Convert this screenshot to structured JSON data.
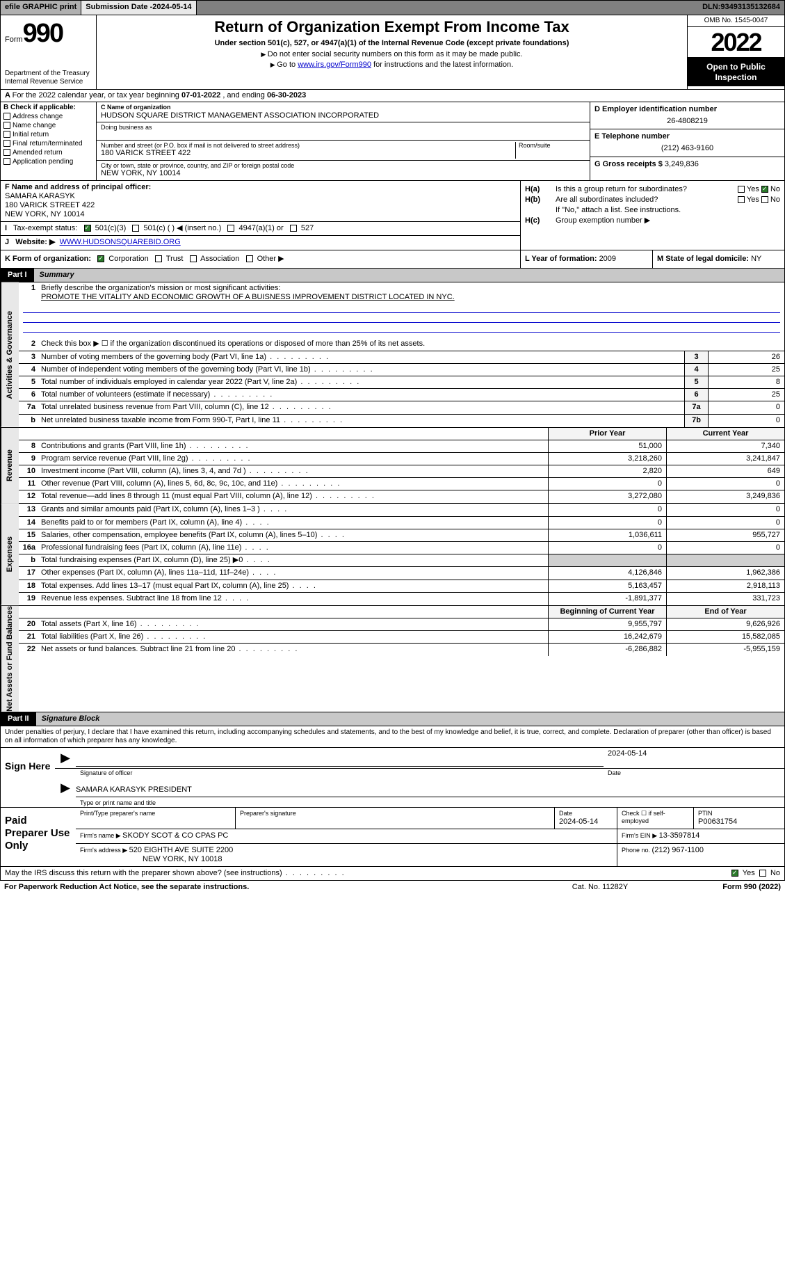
{
  "topbar": {
    "efile": "efile GRAPHIC print",
    "subdate_label": "Submission Date - ",
    "subdate": "2024-05-14",
    "dln_label": "DLN: ",
    "dln": "93493135132684"
  },
  "header": {
    "form_label": "Form",
    "form_num": "990",
    "dept": "Department of the Treasury\nInternal Revenue Service",
    "title": "Return of Organization Exempt From Income Tax",
    "sub1": "Under section 501(c), 527, or 4947(a)(1) of the Internal Revenue Code (except private foundations)",
    "sub2": "Do not enter social security numbers on this form as it may be made public.",
    "sub3_pre": "Go to ",
    "sub3_link": "www.irs.gov/Form990",
    "sub3_post": " for instructions and the latest information.",
    "omb": "OMB No. 1545-0047",
    "year": "2022",
    "inspect": "Open to Public Inspection"
  },
  "row_a": {
    "text_pre": "For the 2022 calendar year, or tax year beginning ",
    "begin": "07-01-2022",
    "text_mid": " , and ending ",
    "end": "06-30-2023"
  },
  "col_b": {
    "label": "B Check if applicable:",
    "items": [
      "Address change",
      "Name change",
      "Initial return",
      "Final return/terminated",
      "Amended return",
      "Application pending"
    ]
  },
  "col_c": {
    "c_label": "C Name of organization",
    "name": "HUDSON SQUARE DISTRICT MANAGEMENT ASSOCIATION INCORPORATED",
    "dba_label": "Doing business as",
    "addr_label": "Number and street (or P.O. box if mail is not delivered to street address)",
    "room_label": "Room/suite",
    "addr": "180 VARICK STREET 422",
    "city_label": "City or town, state or province, country, and ZIP or foreign postal code",
    "city": "NEW YORK, NY  10014"
  },
  "col_d": {
    "d_label": "D Employer identification number",
    "ein": "26-4808219",
    "e_label": "E Telephone number",
    "phone": "(212) 463-9160",
    "g_label": "G Gross receipts $ ",
    "gross": "3,249,836"
  },
  "row_f": {
    "label": "F Name and address of principal officer:",
    "name": "SAMARA KARASYK",
    "addr1": "180 VARICK STREET 422",
    "addr2": "NEW YORK, NY  10014"
  },
  "row_h": {
    "ha_label": "H(a)",
    "ha_text": "Is this a group return for subordinates?",
    "hb_label": "H(b)",
    "hb_text": "Are all subordinates included?",
    "hb_note": "If \"No,\" attach a list. See instructions.",
    "hc_label": "H(c)",
    "hc_text": "Group exemption number ▶",
    "yes": "Yes",
    "no": "No"
  },
  "row_i": {
    "label": "I",
    "text": "Tax-exempt status:",
    "opts": [
      "501(c)(3)",
      "501(c) (  ) ◀ (insert no.)",
      "4947(a)(1) or",
      "527"
    ]
  },
  "row_j": {
    "label": "J",
    "text": "Website: ▶",
    "url": "WWW.HUDSONSQUAREBID.ORG"
  },
  "row_k": {
    "label": "K Form of organization:",
    "opts": [
      "Corporation",
      "Trust",
      "Association",
      "Other ▶"
    ],
    "l_label": "L Year of formation: ",
    "l_val": "2009",
    "m_label": "M State of legal domicile: ",
    "m_val": "NY"
  },
  "part1": {
    "num": "Part I",
    "title": "Summary"
  },
  "summary": {
    "q1_label": "1",
    "q1": "Briefly describe the organization's mission or most significant activities:",
    "q1_ans": "PROMOTE THE VITALITY AND ECONOMIC GROWTH OF A BUISNESS IMPROVEMENT DISTRICT LOCATED IN NYC.",
    "q2_label": "2",
    "q2": "Check this box ▶ ☐  if the organization discontinued its operations or disposed of more than 25% of its net assets.",
    "rows_gov": [
      {
        "n": "3",
        "t": "Number of voting members of the governing body (Part VI, line 1a)",
        "box": "3",
        "v": "26"
      },
      {
        "n": "4",
        "t": "Number of independent voting members of the governing body (Part VI, line 1b)",
        "box": "4",
        "v": "25"
      },
      {
        "n": "5",
        "t": "Total number of individuals employed in calendar year 2022 (Part V, line 2a)",
        "box": "5",
        "v": "8"
      },
      {
        "n": "6",
        "t": "Total number of volunteers (estimate if necessary)",
        "box": "6",
        "v": "25"
      },
      {
        "n": "7a",
        "t": "Total unrelated business revenue from Part VIII, column (C), line 12",
        "box": "7a",
        "v": "0"
      },
      {
        "n": "b",
        "t": "Net unrelated business taxable income from Form 990-T, Part I, line 11",
        "box": "7b",
        "v": "0"
      }
    ],
    "prior_year": "Prior Year",
    "current_year": "Current Year",
    "rows_rev": [
      {
        "n": "8",
        "t": "Contributions and grants (Part VIII, line 1h)",
        "py": "51,000",
        "cy": "7,340"
      },
      {
        "n": "9",
        "t": "Program service revenue (Part VIII, line 2g)",
        "py": "3,218,260",
        "cy": "3,241,847"
      },
      {
        "n": "10",
        "t": "Investment income (Part VIII, column (A), lines 3, 4, and 7d )",
        "py": "2,820",
        "cy": "649"
      },
      {
        "n": "11",
        "t": "Other revenue (Part VIII, column (A), lines 5, 6d, 8c, 9c, 10c, and 11e)",
        "py": "0",
        "cy": "0"
      },
      {
        "n": "12",
        "t": "Total revenue—add lines 8 through 11 (must equal Part VIII, column (A), line 12)",
        "py": "3,272,080",
        "cy": "3,249,836"
      }
    ],
    "rows_exp": [
      {
        "n": "13",
        "t": "Grants and similar amounts paid (Part IX, column (A), lines 1–3 )",
        "py": "0",
        "cy": "0"
      },
      {
        "n": "14",
        "t": "Benefits paid to or for members (Part IX, column (A), line 4)",
        "py": "0",
        "cy": "0"
      },
      {
        "n": "15",
        "t": "Salaries, other compensation, employee benefits (Part IX, column (A), lines 5–10)",
        "py": "1,036,611",
        "cy": "955,727"
      },
      {
        "n": "16a",
        "t": "Professional fundraising fees (Part IX, column (A), line 11e)",
        "py": "0",
        "cy": "0"
      },
      {
        "n": "b",
        "t": "Total fundraising expenses (Part IX, column (D), line 25) ▶0",
        "py": "",
        "cy": ""
      },
      {
        "n": "17",
        "t": "Other expenses (Part IX, column (A), lines 11a–11d, 11f–24e)",
        "py": "4,126,846",
        "cy": "1,962,386"
      },
      {
        "n": "18",
        "t": "Total expenses. Add lines 13–17 (must equal Part IX, column (A), line 25)",
        "py": "5,163,457",
        "cy": "2,918,113"
      },
      {
        "n": "19",
        "t": "Revenue less expenses. Subtract line 18 from line 12",
        "py": "-1,891,377",
        "cy": "331,723"
      }
    ],
    "boy": "Beginning of Current Year",
    "eoy": "End of Year",
    "rows_net": [
      {
        "n": "20",
        "t": "Total assets (Part X, line 16)",
        "py": "9,955,797",
        "cy": "9,626,926"
      },
      {
        "n": "21",
        "t": "Total liabilities (Part X, line 26)",
        "py": "16,242,679",
        "cy": "15,582,085"
      },
      {
        "n": "22",
        "t": "Net assets or fund balances. Subtract line 21 from line 20",
        "py": "-6,286,882",
        "cy": "-5,955,159"
      }
    ],
    "side_gov": "Activities & Governance",
    "side_rev": "Revenue",
    "side_exp": "Expenses",
    "side_net": "Net Assets or Fund Balances"
  },
  "part2": {
    "num": "Part II",
    "title": "Signature Block"
  },
  "sig": {
    "intro": "Under penalties of perjury, I declare that I have examined this return, including accompanying schedules and statements, and to the best of my knowledge and belief, it is true, correct, and complete. Declaration of preparer (other than officer) is based on all information of which preparer has any knowledge.",
    "sign_here": "Sign Here",
    "sig_officer": "Signature of officer",
    "date_label": "Date",
    "date": "2024-05-14",
    "name_title": "SAMARA KARASYK  PRESIDENT",
    "name_caption": "Type or print name and title"
  },
  "preparer": {
    "label": "Paid Preparer Use Only",
    "col1": "Print/Type preparer's name",
    "col2": "Preparer's signature",
    "col3_label": "Date",
    "col3": "2024-05-14",
    "col4_label": "Check ☐ if self-employed",
    "col5_label": "PTIN",
    "col5": "P00631754",
    "firm_name_label": "Firm's name    ▶ ",
    "firm_name": "SKODY SCOT & CO CPAS PC",
    "firm_ein_label": "Firm's EIN ▶ ",
    "firm_ein": "13-3597814",
    "firm_addr_label": "Firm's address ▶ ",
    "firm_addr1": "520 EIGHTH AVE SUITE 2200",
    "firm_addr2": "NEW YORK, NY  10018",
    "phone_label": "Phone no. ",
    "phone": "(212) 967-1100"
  },
  "footer": {
    "discuss": "May the IRS discuss this return with the preparer shown above? (see instructions)",
    "yes": "Yes",
    "no": "No",
    "pra": "For Paperwork Reduction Act Notice, see the separate instructions.",
    "cat": "Cat. No. 11282Y",
    "formref": "Form 990 (2022)"
  }
}
